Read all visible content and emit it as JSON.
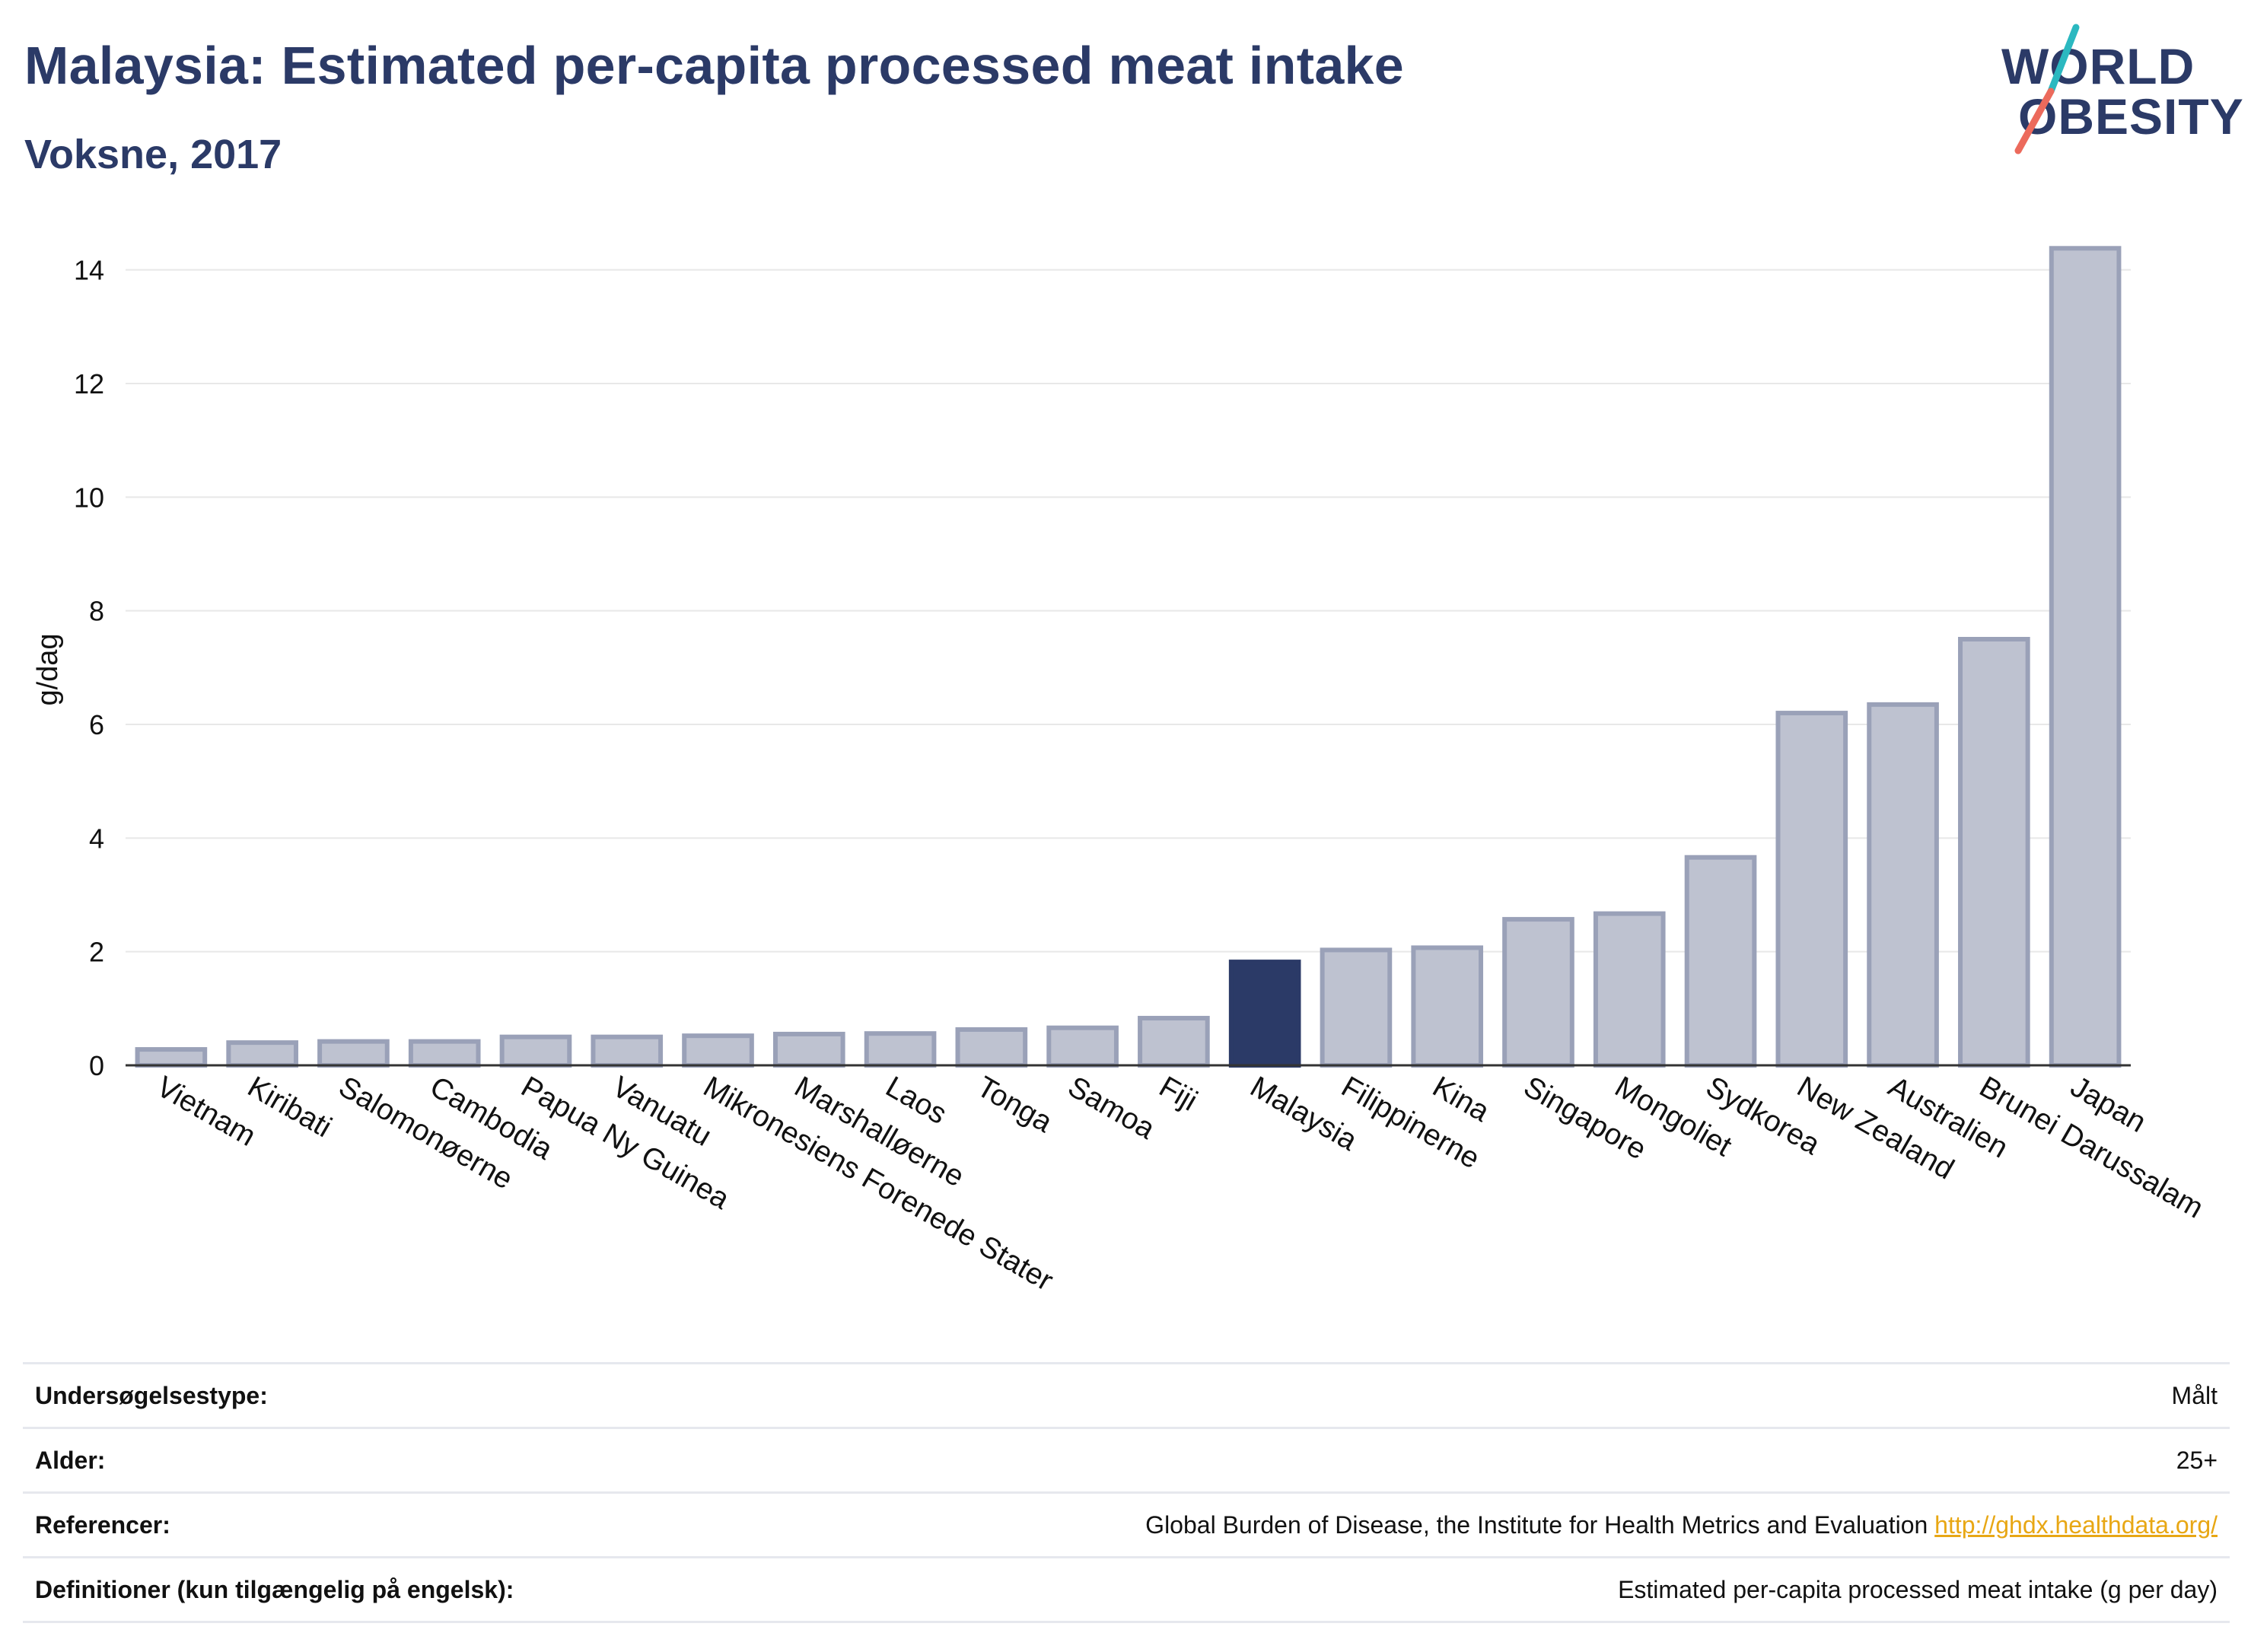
{
  "header": {
    "title": "Malaysia: Estimated per-capita processed meat intake",
    "subtitle": "Voksne, 2017"
  },
  "logo": {
    "line1": "WORLD",
    "line2": "OBESITY",
    "colors": {
      "text": "#2b3a67",
      "slash_teal": "#2bb8c0",
      "slash_coral": "#ec6a5c"
    }
  },
  "colors": {
    "highlight_bar": "#2b3a67",
    "bar_fill": "#bec2d0",
    "bar_stroke": "#9aa1b8",
    "gridline": "#e8e8e8",
    "link": "#e8a714"
  },
  "chart_data": {
    "type": "bar",
    "title": "Malaysia: Estimated per-capita processed meat intake",
    "subtitle": "Voksne, 2017",
    "ylabel": "g/dag",
    "xlabel": "",
    "ylim": [
      0,
      15
    ],
    "yticks": [
      0,
      2,
      4,
      6,
      8,
      10,
      12,
      14
    ],
    "grid": true,
    "highlight": "Malaysia",
    "categories": [
      "Vietnam",
      "Kiribati",
      "Salomonøerne",
      "Cambodia",
      "Papua Ny Guinea",
      "Vanuatu",
      "Mikronesiens Forenede Stater",
      "Marshalløerne",
      "Laos",
      "Tonga",
      "Samoa",
      "Fiji",
      "Malaysia",
      "Filippinerne",
      "Kina",
      "Singapore",
      "Mongoliet",
      "Sydkorea",
      "New Zealand",
      "Australien",
      "Brunei Darussalam",
      "Japan"
    ],
    "values": [
      0.28,
      0.4,
      0.42,
      0.42,
      0.5,
      0.5,
      0.52,
      0.55,
      0.56,
      0.63,
      0.66,
      0.83,
      1.82,
      2.03,
      2.07,
      2.57,
      2.67,
      3.66,
      6.2,
      6.35,
      7.5,
      14.38
    ]
  },
  "info": [
    {
      "key": "Undersøgelsestype:",
      "value": "Målt"
    },
    {
      "key": "Alder:",
      "value": "25+"
    },
    {
      "key": "Referencer:",
      "value": "Global Burden of Disease, the Institute for Health Metrics and Evaluation",
      "link": "http://ghdx.healthdata.org/"
    },
    {
      "key": "Definitioner (kun tilgængelig på engelsk):",
      "value": "Estimated per-capita processed meat intake (g per day)"
    }
  ]
}
